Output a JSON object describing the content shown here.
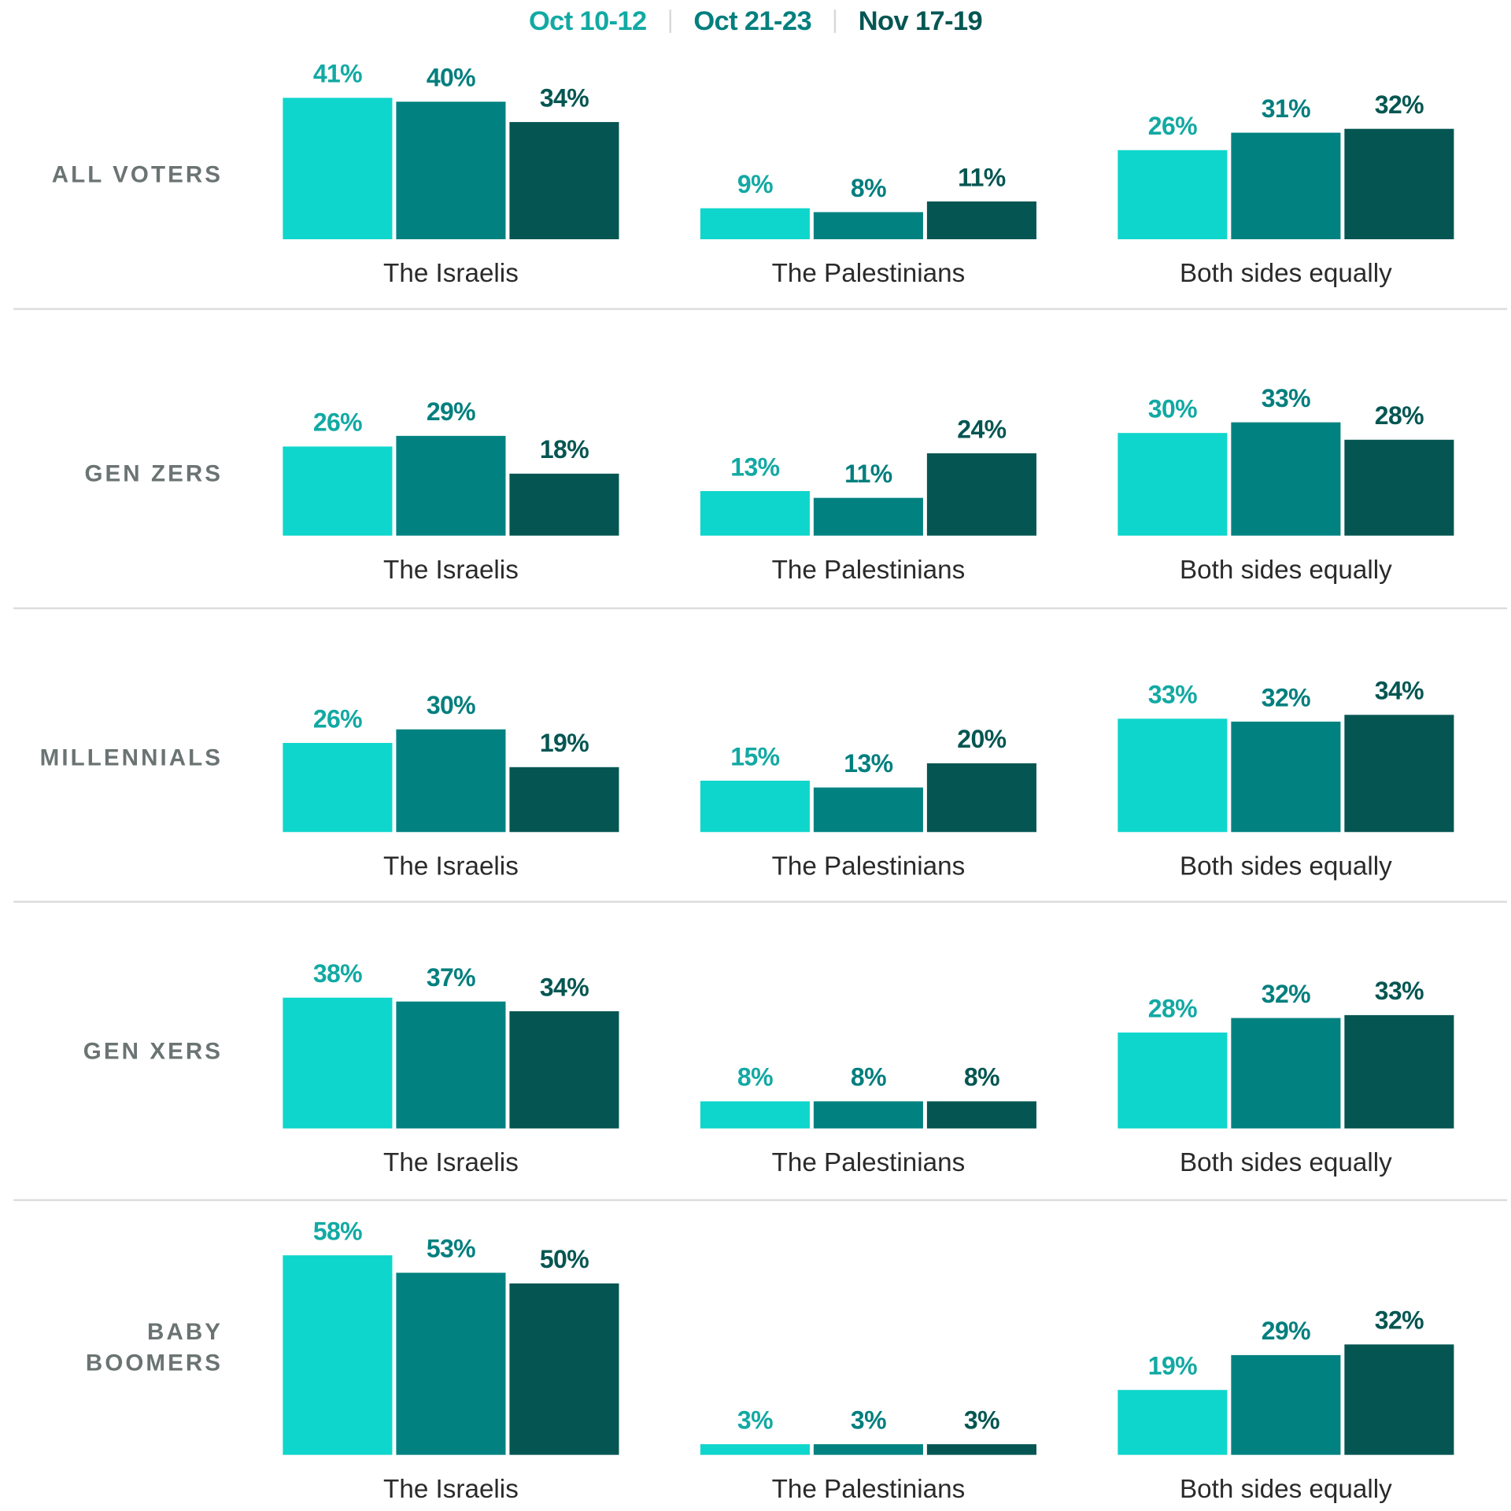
{
  "chart_data": {
    "type": "bar",
    "title": "",
    "xlabel": "",
    "ylabel": "",
    "ylim": [
      0,
      60
    ],
    "grid": false,
    "legend_position": "top-center",
    "series": [
      {
        "name": "Oct 10-12",
        "color": "#0fd6cc",
        "label_color": "#12a9a3"
      },
      {
        "name": "Oct 21-23",
        "color": "#018281",
        "label_color": "#017f7e"
      },
      {
        "name": "Nov 17-19",
        "color": "#055652",
        "label_color": "#055652"
      }
    ],
    "categories": [
      "The Israelis",
      "The Palestinians",
      "Both sides equally"
    ],
    "panels": [
      {
        "group": "ALL VOTERS",
        "values": [
          [
            41,
            40,
            34
          ],
          [
            9,
            8,
            11
          ],
          [
            26,
            31,
            32
          ]
        ]
      },
      {
        "group": "GEN ZERS",
        "values": [
          [
            26,
            29,
            18
          ],
          [
            13,
            11,
            24
          ],
          [
            30,
            33,
            28
          ]
        ]
      },
      {
        "group": "MILLENNIALS",
        "values": [
          [
            26,
            30,
            19
          ],
          [
            15,
            13,
            20
          ],
          [
            33,
            32,
            34
          ]
        ]
      },
      {
        "group": "GEN XERS",
        "values": [
          [
            38,
            37,
            34
          ],
          [
            8,
            8,
            8
          ],
          [
            28,
            32,
            33
          ]
        ]
      },
      {
        "group": "BABY\nBOOMERS",
        "values": [
          [
            58,
            53,
            50
          ],
          [
            3,
            3,
            3
          ],
          [
            19,
            29,
            32
          ]
        ]
      }
    ],
    "value_suffix": "%"
  },
  "legend": {
    "items": [
      "Oct 10-12",
      "Oct 21-23",
      "Nov 17-19"
    ]
  }
}
